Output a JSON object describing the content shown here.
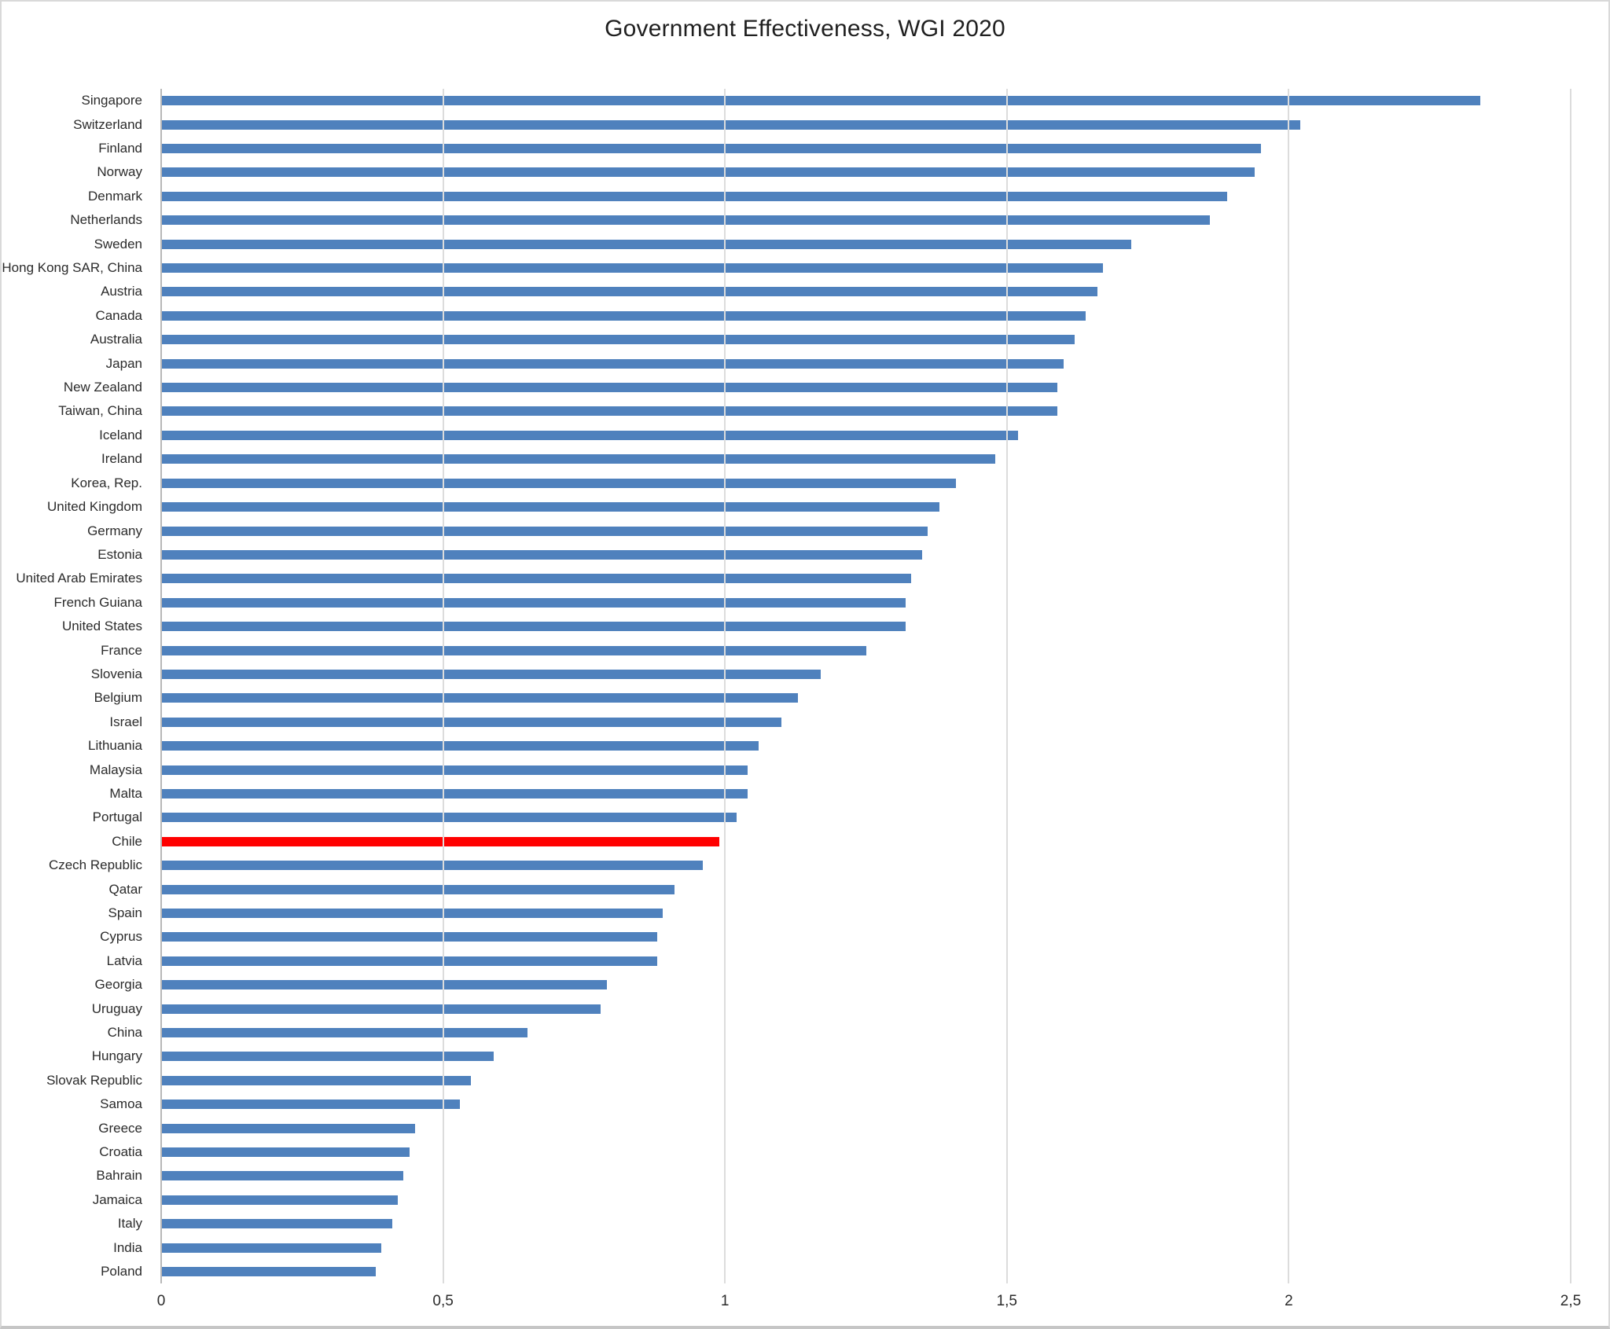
{
  "chart_data": {
    "type": "bar",
    "orientation": "horizontal",
    "title": "Government Effectiveness, WGI 2020",
    "categories": [
      "Singapore",
      "Switzerland",
      "Finland",
      "Norway",
      "Denmark",
      "Netherlands",
      "Sweden",
      "Hong Kong SAR, China",
      "Austria",
      "Canada",
      "Australia",
      "Japan",
      "New Zealand",
      "Taiwan, China",
      "Iceland",
      "Ireland",
      "Korea, Rep.",
      "United Kingdom",
      "Germany",
      "Estonia",
      "United Arab Emirates",
      "French Guiana",
      "United States",
      "France",
      "Slovenia",
      "Belgium",
      "Israel",
      "Lithuania",
      "Malaysia",
      "Malta",
      "Portugal",
      "Chile",
      "Czech Republic",
      "Qatar",
      "Spain",
      "Cyprus",
      "Latvia",
      "Georgia",
      "Uruguay",
      "China",
      "Hungary",
      "Slovak Republic",
      "Samoa",
      "Greece",
      "Croatia",
      "Bahrain",
      "Jamaica",
      "Italy",
      "India",
      "Poland"
    ],
    "values": [
      2.34,
      2.02,
      1.95,
      1.94,
      1.89,
      1.86,
      1.72,
      1.67,
      1.66,
      1.64,
      1.62,
      1.6,
      1.59,
      1.59,
      1.52,
      1.48,
      1.41,
      1.38,
      1.36,
      1.35,
      1.33,
      1.32,
      1.32,
      1.25,
      1.17,
      1.13,
      1.1,
      1.06,
      1.04,
      1.04,
      1.02,
      0.99,
      0.96,
      0.91,
      0.89,
      0.88,
      0.88,
      0.79,
      0.78,
      0.65,
      0.59,
      0.55,
      0.53,
      0.45,
      0.44,
      0.43,
      0.42,
      0.41,
      0.39,
      0.38
    ],
    "xlim": [
      0,
      2.5
    ],
    "x_ticks": [
      {
        "value": 0,
        "label": "0"
      },
      {
        "value": 0.5,
        "label": "0,5"
      },
      {
        "value": 1,
        "label": "1"
      },
      {
        "value": 1.5,
        "label": "1,5"
      },
      {
        "value": 2,
        "label": "2"
      },
      {
        "value": 2.5,
        "label": "2,5"
      }
    ],
    "highlight": {
      "category": "Chile",
      "color": "#ff0000"
    },
    "bar_color": "#4f81bd",
    "gridline_color": "#dcdcdc",
    "axis_line_color": "#b8b8b8",
    "grid": "vertical",
    "legend_position": "none"
  }
}
